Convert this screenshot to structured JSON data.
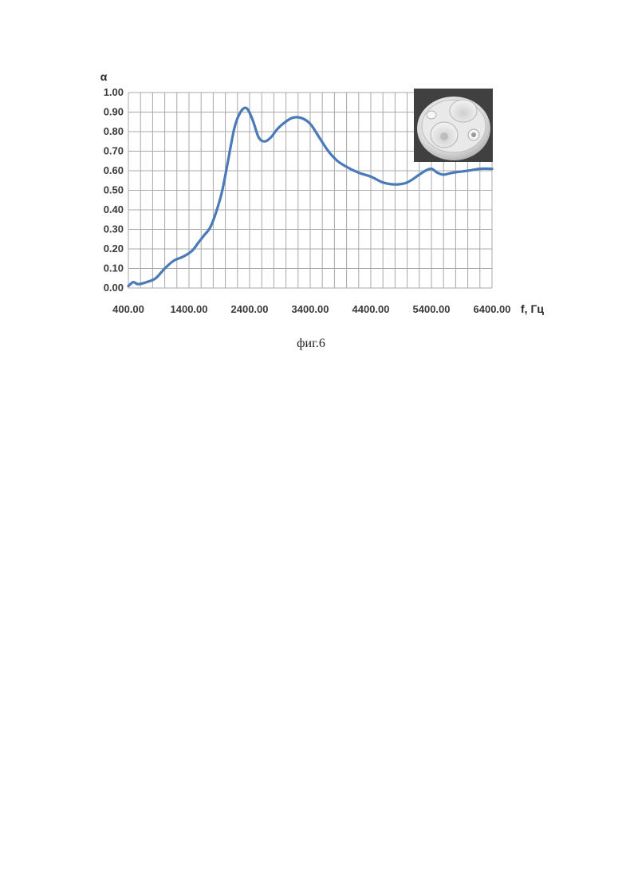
{
  "caption": "фиг.6",
  "chart_data": {
    "type": "line",
    "ylabel": "α",
    "xlabel": "f, Гц",
    "xlim": [
      400,
      6400
    ],
    "ylim": [
      0,
      1
    ],
    "grid": true,
    "x_ticks": [
      "400.00",
      "1400.00",
      "2400.00",
      "3400.00",
      "4400.00",
      "5400.00",
      "6400.00"
    ],
    "y_ticks": [
      "0.00",
      "0.10",
      "0.20",
      "0.30",
      "0.40",
      "0.50",
      "0.60",
      "0.70",
      "0.80",
      "0.90",
      "1.00"
    ],
    "series": [
      {
        "color": "#4a7ab8",
        "x": [
          400,
          480,
          560,
          700,
          850,
          1000,
          1150,
          1300,
          1450,
          1550,
          1650,
          1750,
          1850,
          1950,
          2050,
          2150,
          2250,
          2350,
          2450,
          2550,
          2650,
          2750,
          2850,
          2950,
          3100,
          3250,
          3400,
          3550,
          3700,
          3850,
          4000,
          4200,
          4400,
          4600,
          4800,
          5000,
          5200,
          5300,
          5400,
          5500,
          5600,
          5750,
          6000,
          6200,
          6400
        ],
        "y": [
          0.01,
          0.03,
          0.02,
          0.03,
          0.05,
          0.1,
          0.14,
          0.16,
          0.19,
          0.23,
          0.27,
          0.31,
          0.39,
          0.5,
          0.66,
          0.82,
          0.9,
          0.92,
          0.86,
          0.77,
          0.75,
          0.77,
          0.81,
          0.84,
          0.87,
          0.87,
          0.84,
          0.77,
          0.7,
          0.65,
          0.62,
          0.59,
          0.57,
          0.54,
          0.53,
          0.54,
          0.58,
          0.6,
          0.61,
          0.59,
          0.58,
          0.59,
          0.6,
          0.61,
          0.61
        ]
      }
    ]
  },
  "inset": {
    "icon": "resonator-photo-icon"
  }
}
